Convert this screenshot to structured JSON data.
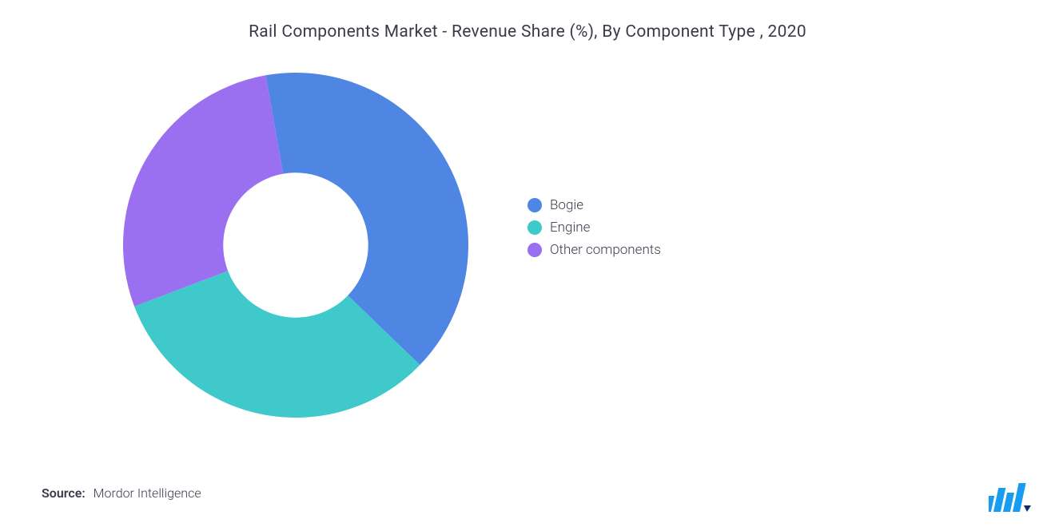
{
  "title": "Rail Components Market - Revenue Share (%), By Component Type , 2020",
  "chart": {
    "type": "donut",
    "inner_radius_ratio": 0.42,
    "background_color": "#ffffff",
    "slices": [
      {
        "label": "Bogie",
        "value": 40,
        "color": "#4f86e3"
      },
      {
        "label": "Engine",
        "value": 32,
        "color": "#3fc9ca"
      },
      {
        "label": "Other components",
        "value": 28,
        "color": "#9a6ff0"
      }
    ],
    "start_angle_deg": -10
  },
  "legend": {
    "items": [
      {
        "label": "Bogie",
        "color": "#4f86e3"
      },
      {
        "label": "Engine",
        "color": "#3fc9ca"
      },
      {
        "label": "Other components",
        "color": "#9a6ff0"
      }
    ],
    "dot_radius": 9,
    "font_size": 17,
    "text_color": "#3a3a4a"
  },
  "source": {
    "prefix": "Source:",
    "name": "Mordor Intelligence"
  },
  "logo": {
    "bar_color": "#169df0",
    "accent_color": "#0a2f6b"
  }
}
